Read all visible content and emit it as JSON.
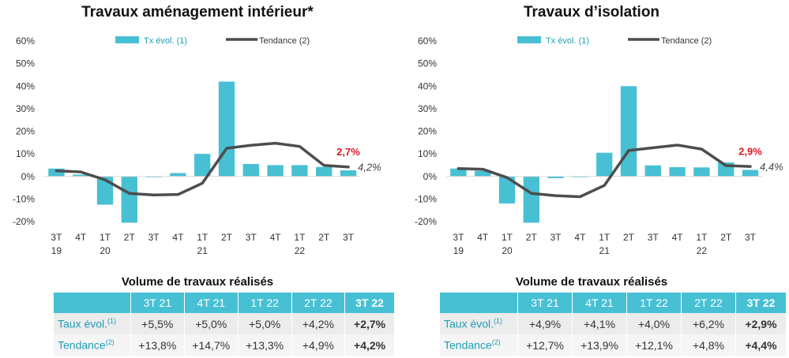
{
  "chart_data": [
    {
      "type": "bar",
      "title": "Travaux aménagement intérieur*",
      "categories": [
        "3T 19",
        "4T 19",
        "1T 20",
        "2T 20",
        "3T 20",
        "4T 20",
        "1T 21",
        "2T 21",
        "3T 21",
        "4T 21",
        "1T 22",
        "2T 22",
        "3T 22"
      ],
      "series": [
        {
          "name": "Tx évol. (1)",
          "kind": "bar",
          "color": "#47c0d3",
          "values": [
            3.5,
            0.8,
            -12.5,
            -20.5,
            -0.2,
            1.5,
            10.0,
            42.0,
            5.5,
            5.0,
            5.0,
            4.2,
            2.7
          ]
        },
        {
          "name": "Tendance (2)",
          "kind": "line",
          "color": "#4d4d4d",
          "values": [
            2.5,
            2.0,
            -1.5,
            -7.5,
            -8.2,
            -8.0,
            -3.0,
            12.5,
            13.8,
            14.7,
            13.3,
            4.9,
            4.2
          ]
        }
      ],
      "ylim": [
        -20,
        60
      ],
      "ytick_labels": [
        "60%",
        "50%",
        "40%",
        "30%",
        "20%",
        "10%",
        "0%",
        "-10%",
        "-20%"
      ],
      "grid": false,
      "legend": "top",
      "annotations": {
        "last_bar_label": "2,7%",
        "last_line_label": "4,2%"
      }
    },
    {
      "type": "bar",
      "title": "Travaux d’isolation",
      "categories": [
        "3T 19",
        "4T 19",
        "1T 20",
        "2T 20",
        "3T 20",
        "4T 20",
        "1T 21",
        "2T 21",
        "3T 21",
        "4T 21",
        "1T 22",
        "2T 22",
        "3T 22"
      ],
      "series": [
        {
          "name": "Tx évol. (1)",
          "kind": "bar",
          "color": "#47c0d3",
          "values": [
            3.5,
            2.5,
            -12.0,
            -20.5,
            -0.8,
            0.0,
            10.5,
            40.0,
            4.9,
            4.1,
            4.0,
            6.2,
            2.9
          ]
        },
        {
          "name": "Tendance (2)",
          "kind": "line",
          "color": "#4d4d4d",
          "values": [
            3.5,
            3.2,
            -0.5,
            -7.5,
            -8.5,
            -9.0,
            -4.0,
            11.5,
            12.7,
            13.9,
            12.1,
            4.8,
            4.4
          ]
        }
      ],
      "ylim": [
        -20,
        60
      ],
      "ytick_labels": [
        "60%",
        "50%",
        "40%",
        "30%",
        "20%",
        "10%",
        "0%",
        "-10%",
        "-20%"
      ],
      "grid": false,
      "legend": "top",
      "annotations": {
        "last_bar_label": "2,9%",
        "last_line_label": "4,4%"
      }
    }
  ],
  "axis_labels": {
    "q": [
      "3T",
      "4T",
      "1T",
      "2T",
      "3T",
      "4T",
      "1T",
      "2T",
      "3T",
      "4T",
      "1T",
      "2T",
      "3T"
    ],
    "y": [
      "19",
      "",
      "20",
      "",
      "",
      "",
      "21",
      "",
      "",
      "",
      "22",
      "",
      ""
    ]
  },
  "legend_labels": {
    "bar": "Tx évol. (1)",
    "line": "Tendance (2)"
  },
  "colors": {
    "bar": "#47c0d3",
    "line": "#4d4d4d",
    "highlight": "#e0141e",
    "header": "#47c0d3"
  },
  "tables": [
    {
      "title": "Volume de travaux réalisés",
      "headers": [
        "3T 21",
        "4T 21",
        "1T 22",
        "2T 22",
        "3T 22"
      ],
      "rows": [
        {
          "label": "Taux évol.",
          "sup": "(1)",
          "cells": [
            "+5,5%",
            "+5,0%",
            "+5,0%",
            "+4,2%",
            "+2,7%"
          ]
        },
        {
          "label": "Tendance",
          "sup": "(2)",
          "cells": [
            "+13,8%",
            "+14,7%",
            "+13,3%",
            "+4,9%",
            "+4,2%"
          ]
        }
      ]
    },
    {
      "title": "Volume de travaux réalisés",
      "headers": [
        "3T 21",
        "4T 21",
        "1T 22",
        "2T 22",
        "3T 22"
      ],
      "rows": [
        {
          "label": "Taux évol.",
          "sup": "(1)",
          "cells": [
            "+4,9%",
            "+4,1%",
            "+4,0%",
            "+6,2%",
            "+2,9%"
          ]
        },
        {
          "label": "Tendance",
          "sup": "(2)",
          "cells": [
            "+12,7%",
            "+13,9%",
            "+12,1%",
            "+4,8%",
            "+4,4%"
          ]
        }
      ]
    }
  ]
}
